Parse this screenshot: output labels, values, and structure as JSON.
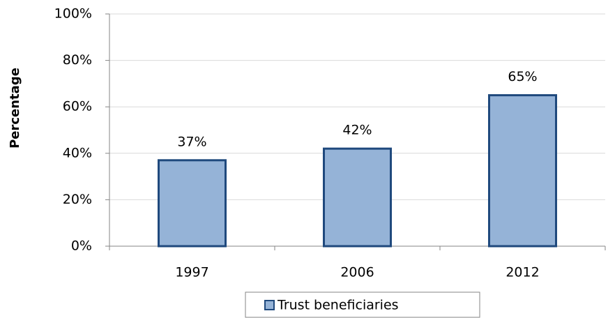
{
  "chart_data": {
    "type": "bar",
    "y_label": "Percentage",
    "categories": [
      "1997",
      "2006",
      "2012"
    ],
    "series": [
      {
        "name": "Trust beneficiaries",
        "color": "#95b3d7",
        "edge_color": "#1f497d",
        "values": [
          37,
          42,
          65
        ],
        "value_labels": [
          "37%",
          "42%",
          "65%"
        ]
      }
    ],
    "ylim": [
      0,
      100
    ],
    "yticks": [
      {
        "value": 0,
        "label": "0%"
      },
      {
        "value": 20,
        "label": "20%"
      },
      {
        "value": 40,
        "label": "40%"
      },
      {
        "value": 60,
        "label": "60%"
      },
      {
        "value": 80,
        "label": "80%"
      },
      {
        "value": 100,
        "label": "100%"
      }
    ],
    "grid": true,
    "legend": "bottom"
  }
}
